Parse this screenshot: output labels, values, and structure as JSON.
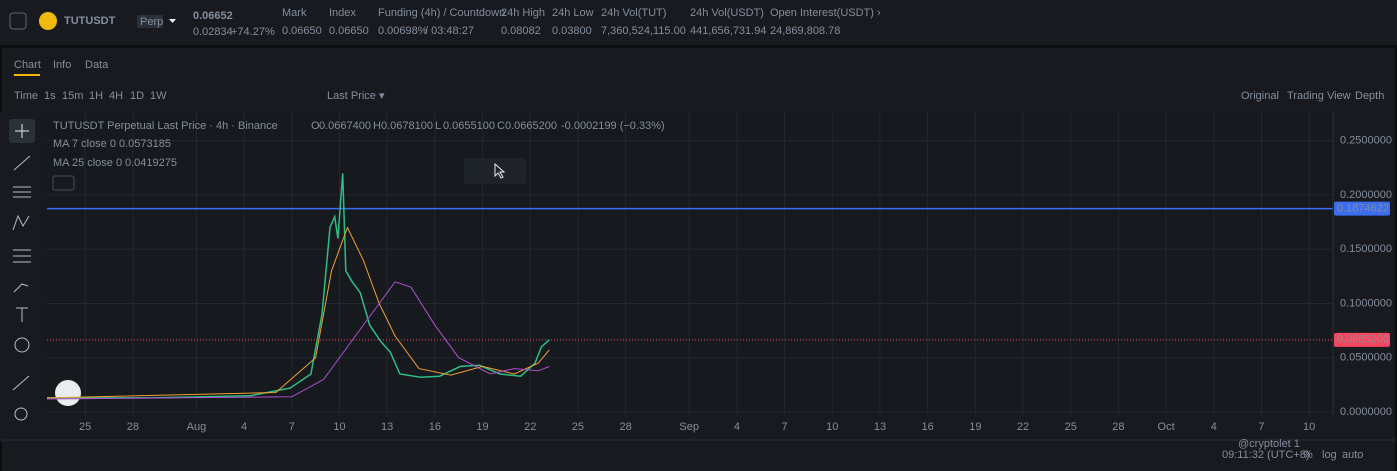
{
  "header": {
    "symbol": "TUTUSDT",
    "badge": "Perp",
    "price": "0.06652",
    "change": "0.02834",
    "change_pct": "+74.27%",
    "stats": [
      {
        "label": "Mark",
        "value": "0.06650"
      },
      {
        "label": "Index",
        "value": "0.06650"
      },
      {
        "label": "Funding (4h) / Countdown",
        "value": "0.00698%",
        "extra": "/ 03:48:27"
      },
      {
        "label": "24h High",
        "value": "0.08082"
      },
      {
        "label": "24h Low",
        "value": "0.03800"
      },
      {
        "label": "24h Vol(TUT)",
        "value": "7,360,524,115.00"
      },
      {
        "label": "24h Vol(USDT)",
        "value": "441,656,731.94"
      },
      {
        "label": "Open Interest(USDT) ›",
        "value": "24,869,808.78"
      }
    ]
  },
  "tabs": [
    "Chart",
    "Info",
    "Data"
  ],
  "toolbar": {
    "intervals": [
      "Time",
      "1s",
      "15m",
      "1H",
      "4H",
      "1D",
      "1W"
    ],
    "price_type": "Last Price ▾",
    "views": [
      "Original",
      "Trading View",
      "Depth"
    ]
  },
  "legend": {
    "title": "TUTUSDT Perpetual Last Price · 4h · Binance",
    "ohlc": [
      {
        "k": "O",
        "v": "0.0667400"
      },
      {
        "k": "H",
        "v": "0.0678100"
      },
      {
        "k": "L",
        "v": "0.0655100"
      },
      {
        "k": "C",
        "v": "0.0665200"
      }
    ],
    "change": "-0.0002199 (−0.33%)",
    "ma": [
      {
        "value": "0.0573185"
      },
      {
        "value": "0.0419275"
      }
    ]
  },
  "chart": {
    "type": "line",
    "xlim": [
      -2.4,
      78.5
    ],
    "ylim": [
      -0.00277,
      0.27648
    ],
    "xticks": [
      {
        "value": 0,
        "label": "25"
      },
      {
        "value": 3,
        "label": "28"
      },
      {
        "value": 7,
        "label": "Aug"
      },
      {
        "value": 10,
        "label": "4"
      },
      {
        "value": 13,
        "label": "7"
      },
      {
        "value": 16,
        "label": "10"
      },
      {
        "value": 19,
        "label": "13"
      },
      {
        "value": 22,
        "label": "16"
      },
      {
        "value": 25,
        "label": "19"
      },
      {
        "value": 28,
        "label": "22"
      },
      {
        "value": 31,
        "label": "25"
      },
      {
        "value": 34,
        "label": "28"
      },
      {
        "value": 38,
        "label": "Sep"
      },
      {
        "value": 41,
        "label": "4"
      },
      {
        "value": 44,
        "label": "7"
      },
      {
        "value": 47,
        "label": "10"
      },
      {
        "value": 50,
        "label": "13"
      },
      {
        "value": 53,
        "label": "16"
      },
      {
        "value": 56,
        "label": "19"
      },
      {
        "value": 59,
        "label": "22"
      },
      {
        "value": 62,
        "label": "25"
      },
      {
        "value": 65,
        "label": "28"
      },
      {
        "value": 68,
        "label": "Oct"
      },
      {
        "value": 71,
        "label": "4"
      },
      {
        "value": 74,
        "label": "7"
      },
      {
        "value": 77,
        "label": "10"
      }
    ],
    "yticks": [
      {
        "value": 0,
        "label": "0.0000000"
      },
      {
        "value": 0.05,
        "label": "0.0500000"
      },
      {
        "value": 0.1,
        "label": "0.1000000"
      },
      {
        "value": 0.15,
        "label": "0.1500000"
      },
      {
        "value": 0.2,
        "label": "0.2000000"
      },
      {
        "value": 0.25,
        "label": "0.2500000"
      }
    ],
    "grid": true,
    "series": [
      {
        "color": "#2ebd85",
        "x": [
          -2.4,
          4.1,
          10.4,
          12.9,
          14.2,
          14.9,
          15.4,
          15.7,
          15.9,
          16.2,
          16.4,
          16.8,
          17.3,
          17.9,
          18.6,
          19.2,
          19.8,
          21.1,
          22.3,
          23.6,
          24.8,
          26.1,
          27.4,
          28.3,
          28.7,
          29.2
        ],
        "values": [
          0.013,
          0.013,
          0.015,
          0.022,
          0.035,
          0.09,
          0.17,
          0.18,
          0.16,
          0.22,
          0.13,
          0.12,
          0.11,
          0.08,
          0.065,
          0.055,
          0.035,
          0.032,
          0.033,
          0.042,
          0.043,
          0.035,
          0.033,
          0.045,
          0.06,
          0.0665
        ]
      },
      {
        "name": "MA 7 close 0",
        "color": "#f0a030",
        "x": [
          -2.4,
          12,
          14.5,
          15.5,
          16.5,
          17.5,
          18.5,
          19.5,
          21,
          23,
          25,
          27,
          28.5,
          29.2
        ],
        "values": [
          0.013,
          0.018,
          0.05,
          0.13,
          0.17,
          0.14,
          0.1,
          0.07,
          0.04,
          0.034,
          0.042,
          0.035,
          0.045,
          0.0573
        ]
      },
      {
        "name": "MA 25 close 0",
        "color": "#b04fd0",
        "x": [
          -2.4,
          13,
          15,
          17,
          18.5,
          19.5,
          20.5,
          22,
          23.5,
          25.5,
          27,
          28.5,
          29.2
        ],
        "values": [
          0.012,
          0.014,
          0.03,
          0.07,
          0.1,
          0.12,
          0.115,
          0.08,
          0.05,
          0.035,
          0.04,
          0.038,
          0.0419
        ]
      }
    ],
    "price_lines": [
      {
        "value": 0.1874622,
        "color": "#3a6df0",
        "value_label": "0.1874622"
      },
      {
        "value": 0.06652,
        "color": "#f6465d",
        "value_label": "0.0665200"
      }
    ]
  },
  "footer": {
    "time": "09:11:32 (UTC+8)",
    "pct": "%",
    "log": "log",
    "auto": "auto",
    "watermark": "@cryptolet 1"
  }
}
